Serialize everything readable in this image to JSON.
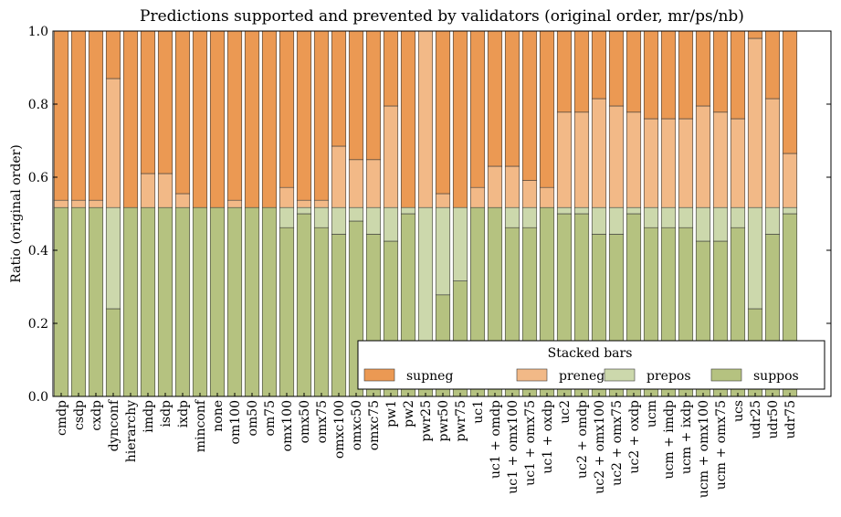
{
  "chart_data": {
    "type": "bar",
    "stacked": true,
    "title": "Predictions supported and prevented by validators (original order, mr/ps/nb)",
    "xlabel": "",
    "ylabel": "Ratio (original order)",
    "ylim": [
      0,
      1
    ],
    "yticks": [
      "0.0",
      "0.2",
      "0.4",
      "0.6",
      "0.8",
      "1.0"
    ],
    "grid": false,
    "legend": {
      "title": "Stacked bars",
      "placement": "lower-right"
    },
    "categories": [
      "cmdp",
      "csdp",
      "cxdp",
      "dynconf",
      "hierarchy",
      "imdp",
      "isdp",
      "ixdp",
      "minconf",
      "none",
      "om100",
      "om50",
      "om75",
      "omx100",
      "omx50",
      "omx75",
      "omxc100",
      "omxc50",
      "omxc75",
      "pw1",
      "pw2",
      "pwr25",
      "pwr50",
      "pwr75",
      "uc1",
      "uc1 + omdp",
      "uc1 + omx100",
      "uc1 + omx75",
      "uc1 + oxdp",
      "uc2",
      "uc2 + omdp",
      "uc2 + omx100",
      "uc2 + omx75",
      "uc2 + oxdp",
      "ucm",
      "ucm + imdp",
      "ucm + ixdp",
      "ucm + omx100",
      "ucm + omx75",
      "ucs",
      "udr25",
      "udr50",
      "udr75"
    ],
    "series": [
      {
        "name": "suppos",
        "color": "#b5c280",
        "values": [
          0.517,
          0.517,
          0.517,
          0.24,
          0.517,
          0.517,
          0.517,
          0.517,
          0.517,
          0.517,
          0.517,
          0.517,
          0.517,
          0.462,
          0.5,
          0.462,
          0.444,
          0.48,
          0.444,
          0.425,
          0.5,
          0.02,
          0.278,
          0.316,
          0.517,
          0.517,
          0.462,
          0.462,
          0.517,
          0.5,
          0.5,
          0.444,
          0.444,
          0.5,
          0.462,
          0.462,
          0.462,
          0.425,
          0.425,
          0.462,
          0.24,
          0.444,
          0.5
        ]
      },
      {
        "name": "prepos",
        "color": "#ccd8ac",
        "values": [
          0.0,
          0.0,
          0.0,
          0.277,
          0.0,
          0.0,
          0.0,
          0.0,
          0.0,
          0.0,
          0.0,
          0.0,
          0.0,
          0.055,
          0.017,
          0.055,
          0.073,
          0.037,
          0.073,
          0.092,
          0.017,
          0.497,
          0.239,
          0.201,
          0.0,
          0.0,
          0.055,
          0.055,
          0.0,
          0.017,
          0.017,
          0.073,
          0.073,
          0.017,
          0.055,
          0.055,
          0.055,
          0.092,
          0.092,
          0.055,
          0.277,
          0.073,
          0.017
        ]
      },
      {
        "name": "preneg",
        "color": "#f2b987",
        "values": [
          0.02,
          0.02,
          0.02,
          0.353,
          0.0,
          0.093,
          0.093,
          0.038,
          0.0,
          0.0,
          0.02,
          0.0,
          0.0,
          0.055,
          0.02,
          0.02,
          0.168,
          0.131,
          0.131,
          0.278,
          0.0,
          0.483,
          0.038,
          0.0,
          0.055,
          0.113,
          0.113,
          0.074,
          0.055,
          0.261,
          0.261,
          0.298,
          0.278,
          0.261,
          0.243,
          0.243,
          0.243,
          0.278,
          0.261,
          0.243,
          0.463,
          0.298,
          0.148
        ]
      },
      {
        "name": "supneg",
        "color": "#eb9953",
        "values": [
          0.463,
          0.463,
          0.463,
          0.13,
          0.483,
          0.39,
          0.39,
          0.445,
          0.483,
          0.483,
          0.463,
          0.483,
          0.483,
          0.428,
          0.463,
          0.463,
          0.315,
          0.352,
          0.352,
          0.205,
          0.483,
          0.0,
          0.445,
          0.483,
          0.428,
          0.37,
          0.37,
          0.409,
          0.428,
          0.222,
          0.222,
          0.185,
          0.205,
          0.222,
          0.24,
          0.24,
          0.24,
          0.205,
          0.222,
          0.24,
          0.02,
          0.185,
          0.335
        ]
      }
    ],
    "legend_order": [
      "supneg",
      "preneg",
      "prepos",
      "suppos"
    ]
  }
}
